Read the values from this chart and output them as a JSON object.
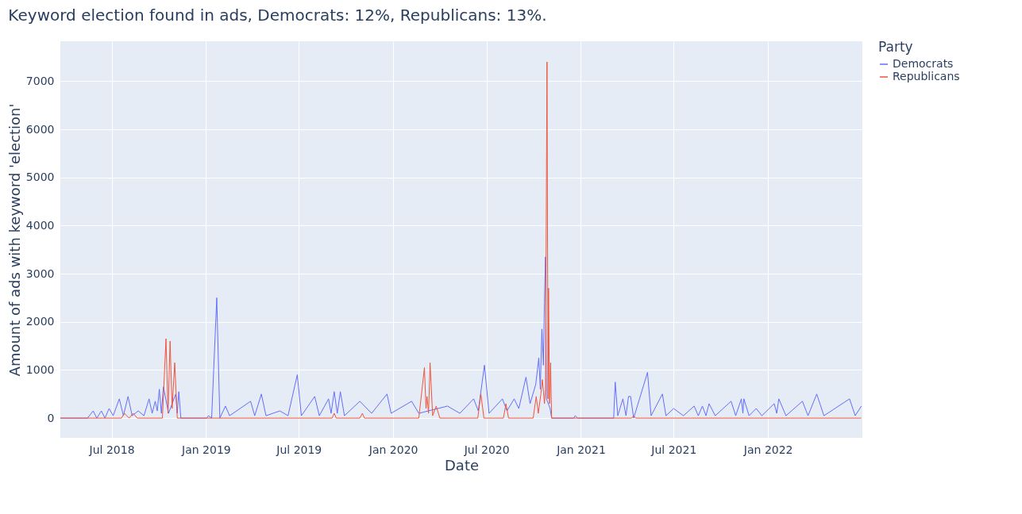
{
  "chart_data": {
    "type": "line",
    "title": "Keyword election found in ads, Democrats: 12%, Republicans: 13%.",
    "xlabel": "Date",
    "ylabel": "Amount of ads with keyword 'election'",
    "legend_title": "Party",
    "legend": "right",
    "grid": true,
    "xlim": [
      "2018-03-23",
      "2022-07-04"
    ],
    "ylim": [
      -410,
      7830
    ],
    "xticks": [
      {
        "value": "2018-07-01",
        "label": "Jul 2018"
      },
      {
        "value": "2019-01-01",
        "label": "Jan 2019"
      },
      {
        "value": "2019-07-01",
        "label": "Jul 2019"
      },
      {
        "value": "2020-01-01",
        "label": "Jan 2020"
      },
      {
        "value": "2020-07-01",
        "label": "Jul 2020"
      },
      {
        "value": "2021-01-01",
        "label": "Jan 2021"
      },
      {
        "value": "2021-07-01",
        "label": "Jul 2021"
      },
      {
        "value": "2022-01-01",
        "label": "Jan 2022"
      }
    ],
    "yticks": [
      0,
      1000,
      2000,
      3000,
      4000,
      5000,
      6000,
      7000
    ],
    "series": [
      {
        "name": "Democrats",
        "color": "#636efa",
        "x": [
          "2018-03-23",
          "2018-05-15",
          "2018-05-26",
          "2018-06-02",
          "2018-06-11",
          "2018-06-18",
          "2018-06-26",
          "2018-07-04",
          "2018-07-16",
          "2018-07-24",
          "2018-08-02",
          "2018-08-10",
          "2018-08-22",
          "2018-09-02",
          "2018-09-12",
          "2018-09-18",
          "2018-09-24",
          "2018-09-28",
          "2018-10-02",
          "2018-10-06",
          "2018-10-10",
          "2018-10-20",
          "2018-11-03",
          "2018-11-06",
          "2018-11-09",
          "2018-11-13",
          "2019-01-02",
          "2019-01-06",
          "2019-01-12",
          "2019-01-22",
          "2019-01-28",
          "2019-02-08",
          "2019-02-16",
          "2019-03-29",
          "2019-04-06",
          "2019-04-19",
          "2019-04-28",
          "2019-05-25",
          "2019-06-10",
          "2019-06-28",
          "2019-07-06",
          "2019-08-01",
          "2019-08-10",
          "2019-08-28",
          "2019-09-02",
          "2019-09-08",
          "2019-09-14",
          "2019-09-20",
          "2019-09-28",
          "2019-10-28",
          "2019-11-20",
          "2019-12-20",
          "2019-12-28",
          "2020-02-06",
          "2020-02-20",
          "2020-04-16",
          "2020-05-10",
          "2020-06-06",
          "2020-06-15",
          "2020-06-27",
          "2020-07-06",
          "2020-08-01",
          "2020-08-10",
          "2020-08-24",
          "2020-09-02",
          "2020-09-16",
          "2020-09-24",
          "2020-10-05",
          "2020-10-11",
          "2020-10-14",
          "2020-10-17",
          "2020-10-20",
          "2020-10-22",
          "2020-10-24",
          "2020-10-26",
          "2020-11-02",
          "2020-11-05",
          "2020-12-18",
          "2020-12-21",
          "2020-12-26",
          "2021-03-06",
          "2021-03-09",
          "2021-03-14",
          "2021-03-24",
          "2021-03-30",
          "2021-04-04",
          "2021-04-08",
          "2021-04-14",
          "2021-05-11",
          "2021-05-18",
          "2021-06-09",
          "2021-06-16",
          "2021-07-01",
          "2021-07-20",
          "2021-08-10",
          "2021-08-18",
          "2021-08-26",
          "2021-09-02",
          "2021-09-08",
          "2021-09-20",
          "2021-10-21",
          "2021-10-30",
          "2021-11-10",
          "2021-11-13",
          "2021-11-15",
          "2021-11-25",
          "2021-12-09",
          "2021-12-20",
          "2022-01-13",
          "2022-01-18",
          "2022-01-22",
          "2022-02-05",
          "2022-03-09",
          "2022-03-20",
          "2022-04-06",
          "2022-04-20",
          "2022-06-09",
          "2022-06-20",
          "2022-07-02"
        ],
        "values": [
          0,
          0,
          150,
          0,
          150,
          0,
          200,
          50,
          400,
          50,
          450,
          50,
          150,
          50,
          400,
          100,
          350,
          150,
          600,
          100,
          650,
          100,
          500,
          100,
          550,
          0,
          0,
          50,
          0,
          2500,
          0,
          250,
          50,
          350,
          50,
          500,
          50,
          150,
          50,
          900,
          50,
          450,
          50,
          400,
          100,
          550,
          100,
          550,
          50,
          350,
          100,
          500,
          100,
          350,
          100,
          250,
          100,
          400,
          150,
          1100,
          100,
          400,
          150,
          400,
          200,
          850,
          300,
          700,
          1250,
          600,
          1850,
          1100,
          2400,
          3350,
          400,
          200,
          0,
          0,
          50,
          0,
          0,
          750,
          50,
          400,
          50,
          450,
          450,
          0,
          950,
          50,
          500,
          50,
          200,
          50,
          250,
          50,
          250,
          50,
          300,
          50,
          350,
          50,
          400,
          100,
          400,
          50,
          200,
          50,
          300,
          100,
          400,
          50,
          350,
          50,
          500,
          50,
          400,
          50,
          250
        ]
      },
      {
        "name": "Republicans",
        "color": "#ef553b",
        "x": [
          "2018-03-23",
          "2018-07-20",
          "2018-07-26",
          "2018-08-04",
          "2018-08-12",
          "2018-08-20",
          "2018-10-08",
          "2018-10-15",
          "2018-10-19",
          "2018-10-23",
          "2018-10-27",
          "2018-11-01",
          "2018-11-06",
          "2019-09-04",
          "2019-09-08",
          "2019-09-12",
          "2019-10-28",
          "2019-11-02",
          "2019-11-06",
          "2020-02-20",
          "2020-03-02",
          "2020-03-05",
          "2020-03-07",
          "2020-03-10",
          "2020-03-13",
          "2020-03-18",
          "2020-03-25",
          "2020-04-01",
          "2020-06-14",
          "2020-06-20",
          "2020-06-26",
          "2020-08-03",
          "2020-08-08",
          "2020-08-13",
          "2020-09-30",
          "2020-10-06",
          "2020-10-10",
          "2020-10-15",
          "2020-10-18",
          "2020-10-22",
          "2020-10-24",
          "2020-10-27",
          "2020-10-29",
          "2020-10-30",
          "2020-11-01",
          "2020-11-03",
          "2020-11-05",
          "2021-04-10",
          "2021-04-14",
          "2021-04-18",
          "2022-07-02"
        ],
        "values": [
          0,
          0,
          100,
          0,
          100,
          0,
          0,
          1650,
          100,
          1600,
          200,
          1150,
          0,
          0,
          100,
          0,
          0,
          100,
          0,
          0,
          1050,
          200,
          450,
          100,
          1150,
          50,
          250,
          0,
          0,
          500,
          0,
          0,
          300,
          0,
          0,
          450,
          100,
          500,
          800,
          300,
          600,
          7400,
          400,
          2700,
          300,
          1150,
          0,
          0,
          50,
          0,
          0
        ]
      }
    ]
  }
}
